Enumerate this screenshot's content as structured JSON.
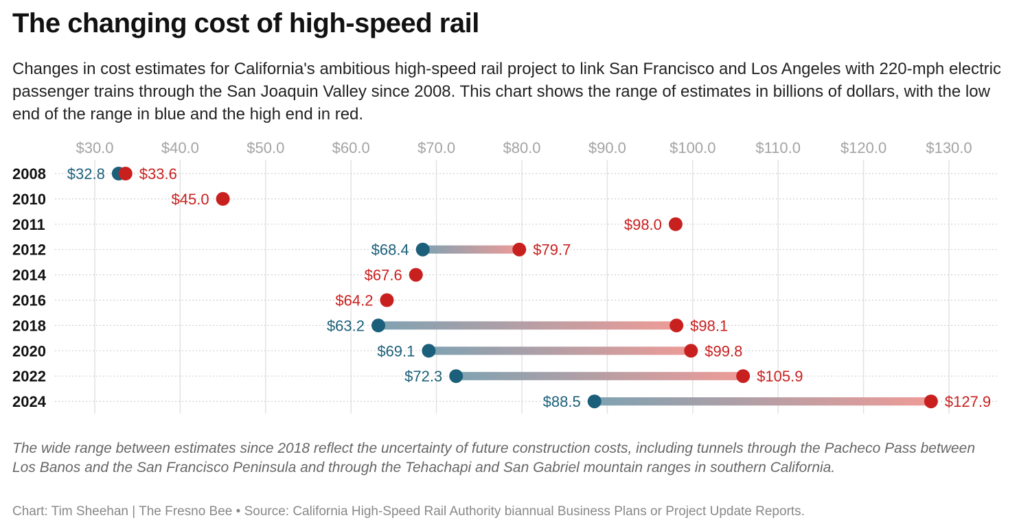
{
  "title": "The changing cost of high-speed rail",
  "subtitle": "Changes in cost estimates for California's ambitious high-speed rail project to link San Francisco and Los Angeles with 220-mph electric passenger trains through the San Joaquin Valley since 2008. This chart shows the range of estimates in billions of dollars, with the low end of the range in blue and the high end in red.",
  "note": "The wide range between estimates since 2018 reflect the uncertainty of future construction costs, including tunnels through the Pacheco Pass between Los Banos and the San Francisco Peninsula and through the Tehachapi and San Gabriel mountain ranges in southern California.",
  "credit": "Chart: Tim Sheehan | The Fresno Bee • Source: California High-Speed Rail Authority biannual Business Plans or Project Update Reports.",
  "chart_data": {
    "type": "dumbbell",
    "xlim": [
      30,
      130
    ],
    "xticks": [
      30,
      40,
      50,
      60,
      70,
      80,
      90,
      100,
      110,
      120,
      130
    ],
    "xtick_labels": [
      "$30.0",
      "$40.0",
      "$50.0",
      "$60.0",
      "$70.0",
      "$80.0",
      "$90.0",
      "$100.0",
      "$110.0",
      "$120.0",
      "$130.0"
    ],
    "categories": [
      "2008",
      "2010",
      "2011",
      "2012",
      "2014",
      "2016",
      "2018",
      "2020",
      "2022",
      "2024"
    ],
    "series": [
      {
        "name": "Low estimate",
        "color": "#1b5f7a",
        "values": [
          32.8,
          null,
          null,
          68.4,
          null,
          null,
          63.2,
          69.1,
          72.3,
          88.5
        ]
      },
      {
        "name": "High estimate",
        "color": "#c8201f",
        "values": [
          33.6,
          45.0,
          98.0,
          79.7,
          67.6,
          64.2,
          98.1,
          99.8,
          105.9,
          127.9
        ]
      }
    ],
    "grid": true
  }
}
